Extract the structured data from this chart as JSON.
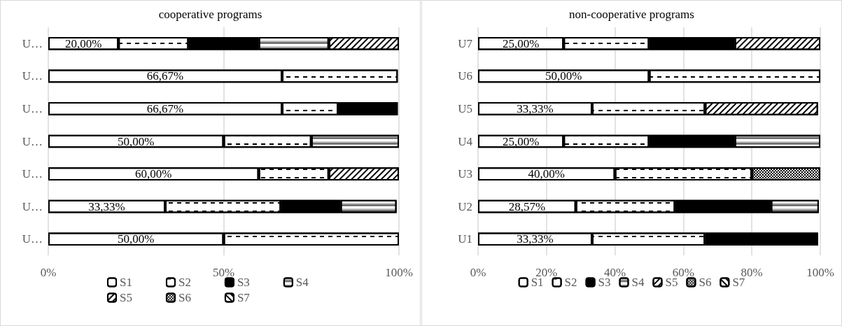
{
  "chart_data": [
    {
      "type": "bar",
      "title": "cooperative programs",
      "orientation": "horizontal",
      "stacked": true,
      "categories": [
        "U…",
        "U…",
        "U…",
        "U…",
        "U…",
        "U…",
        "U…"
      ],
      "xlim": [
        0,
        100
      ],
      "xticks": [
        {
          "value": 0,
          "label": "0%"
        },
        {
          "value": 50,
          "label": "50%"
        },
        {
          "value": 100,
          "label": "100%"
        }
      ],
      "grid": "x",
      "legend": "bottom",
      "series": [
        {
          "name": "S1",
          "color": "#ffffff",
          "values": [
            20,
            66.67,
            66.67,
            50,
            60,
            33.33,
            50
          ],
          "value_labels": [
            "20,00%",
            "66,67%",
            "66,67%",
            "50,00%",
            "60,00%",
            "33,33%",
            "50,00%"
          ]
        },
        {
          "name": "S2",
          "color": "#ffffff",
          "values": [
            20,
            33,
            16,
            25,
            20,
            33,
            50
          ]
        },
        {
          "name": "S3",
          "color": "#000000",
          "values": [
            20,
            null,
            17,
            null,
            null,
            17,
            null
          ]
        },
        {
          "name": "S4",
          "color": "#ffffff",
          "values": [
            20,
            null,
            null,
            25,
            null,
            16,
            null
          ]
        },
        {
          "name": "S5",
          "color": "#ffffff",
          "values": [
            20,
            null,
            null,
            null,
            20,
            null,
            null
          ]
        },
        {
          "name": "S6",
          "color": "#ffffff",
          "values": [
            null,
            null,
            null,
            null,
            null,
            null,
            null
          ]
        },
        {
          "name": "S7",
          "color": "#ffffff",
          "values": [
            null,
            null,
            null,
            null,
            null,
            null,
            null
          ]
        }
      ]
    },
    {
      "type": "bar",
      "title": "non-cooperative programs",
      "orientation": "horizontal",
      "stacked": true,
      "categories": [
        "U7",
        "U6",
        "U5",
        "U4",
        "U3",
        "U2",
        "U1"
      ],
      "xlim": [
        0,
        100
      ],
      "xticks": [
        {
          "value": 0,
          "label": "0%"
        },
        {
          "value": 20,
          "label": "20%"
        },
        {
          "value": 40,
          "label": "40%"
        },
        {
          "value": 60,
          "label": "60%"
        },
        {
          "value": 80,
          "label": "80%"
        },
        {
          "value": 100,
          "label": "100%"
        }
      ],
      "grid": "x",
      "legend": "bottom",
      "series": [
        {
          "name": "S1",
          "color": "#ffffff",
          "values": [
            25,
            50,
            33.33,
            25,
            40,
            28.57,
            33.33
          ],
          "value_labels": [
            "25,00%",
            "50,00%",
            "33,33%",
            "25,00%",
            "40,00%",
            "28,57%",
            "33,33%"
          ]
        },
        {
          "name": "S2",
          "color": "#ffffff",
          "values": [
            25,
            50,
            33,
            25,
            40,
            29,
            33
          ]
        },
        {
          "name": "S3",
          "color": "#000000",
          "values": [
            25,
            null,
            null,
            25,
            null,
            28,
            33
          ]
        },
        {
          "name": "S4",
          "color": "#ffffff",
          "values": [
            null,
            null,
            null,
            25,
            null,
            14,
            null
          ]
        },
        {
          "name": "S5",
          "color": "#ffffff",
          "values": [
            25,
            null,
            33,
            null,
            null,
            null,
            null
          ]
        },
        {
          "name": "S6",
          "color": "#ffffff",
          "values": [
            null,
            null,
            null,
            null,
            20,
            null,
            null
          ]
        },
        {
          "name": "S7",
          "color": "#ffffff",
          "values": [
            null,
            null,
            null,
            null,
            null,
            null,
            null
          ]
        }
      ]
    }
  ]
}
